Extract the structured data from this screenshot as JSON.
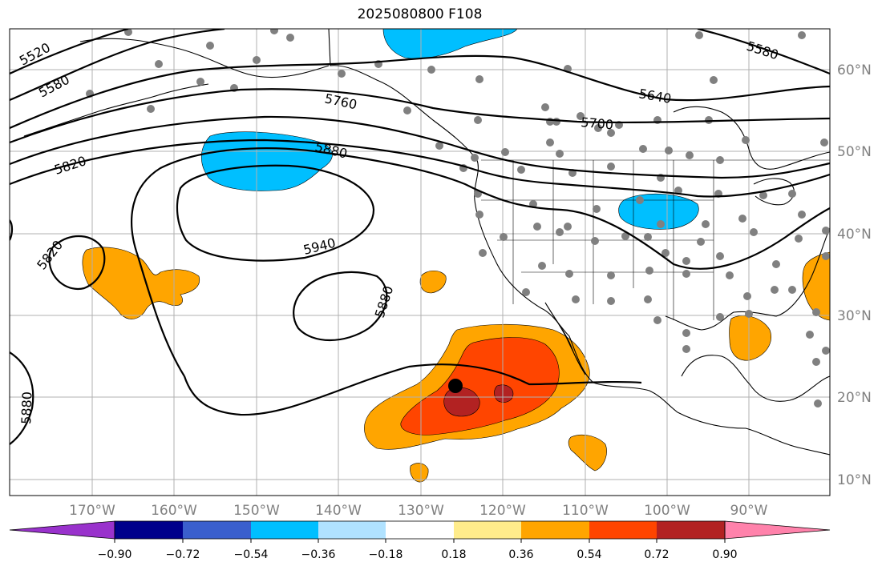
{
  "title": "2025080800 F108",
  "axes": {
    "lon_labels": [
      "170°W",
      "160°W",
      "150°W",
      "140°W",
      "130°W",
      "120°W",
      "110°W",
      "100°W",
      "90°W"
    ],
    "lat_labels": [
      "10°N",
      "20°N",
      "30°N",
      "40°N",
      "50°N",
      "60°N"
    ]
  },
  "contours": {
    "color": "#000000",
    "labels": [
      "5520",
      "5580",
      "5580",
      "5640",
      "5700",
      "5760",
      "5820",
      "5820",
      "5880",
      "5880",
      "5880",
      "5940"
    ]
  },
  "anomaly_fill": {
    "colors": {
      "neg_036_054": "#00bfff",
      "pos_036_054": "#ffa500",
      "pos_054_072": "#ff4500",
      "pos_072_090": "#b22222"
    }
  },
  "station_marker_color": "#808080",
  "highlight_marker_color": "#000000",
  "colorbar": {
    "colors": [
      "#9932cc",
      "#00008b",
      "#3a5fcd",
      "#00bfff",
      "#b0e2ff",
      "#ffffff",
      "#ffec8b",
      "#ffa500",
      "#ff4500",
      "#b22222",
      "#ff82ab"
    ],
    "tick_labels": [
      "−0.90",
      "−0.72",
      "−0.54",
      "−0.36",
      "−0.18",
      "0.18",
      "0.36",
      "0.54",
      "0.72",
      "0.90"
    ]
  }
}
